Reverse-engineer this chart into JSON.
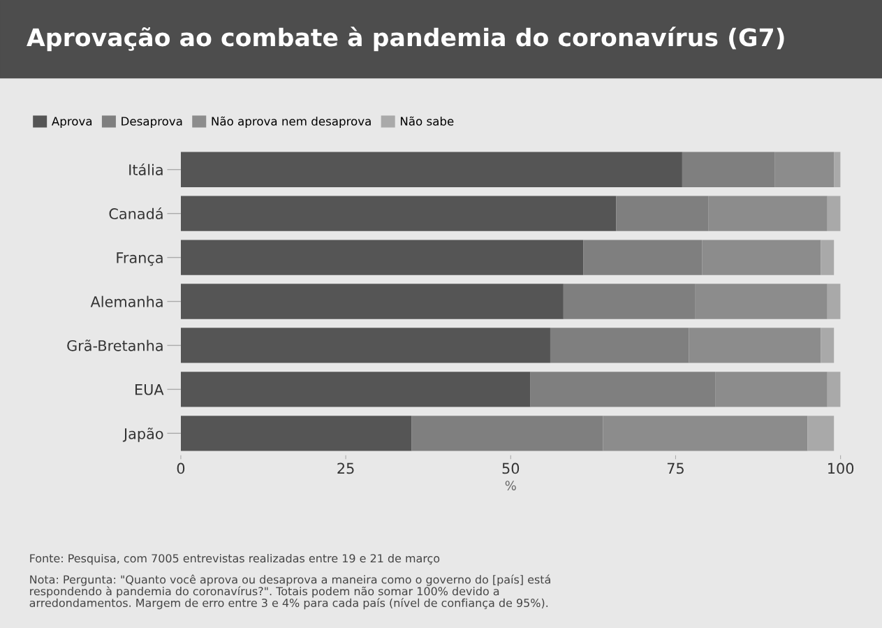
{
  "chart_data": {
    "type": "bar",
    "orientation": "horizontal",
    "stacked": true,
    "title": "Aprovação ao combate à pandemia do coronavírus (G7)",
    "categories": [
      "Itália",
      "Canadá",
      "França",
      "Alemanha",
      "Grã-Bretanha",
      "EUA",
      "Japão"
    ],
    "series": [
      {
        "name": "Aprova",
        "color": "#555555",
        "values": [
          76,
          66,
          61,
          58,
          56,
          53,
          35
        ]
      },
      {
        "name": "Desaprova",
        "color": "#7f7f7f",
        "values": [
          14,
          14,
          18,
          20,
          21,
          28,
          29
        ]
      },
      {
        "name": "Não aprova nem desaprova",
        "color": "#8c8c8c",
        "values": [
          9,
          18,
          18,
          20,
          20,
          17,
          31
        ]
      },
      {
        "name": "Não sabe",
        "color": "#a9a9a9",
        "values": [
          1,
          2,
          2,
          2,
          2,
          2,
          4
        ]
      }
    ],
    "xlabel": "%",
    "xlim": [
      0,
      100
    ],
    "xticks": [
      0,
      25,
      50,
      75,
      100
    ],
    "grid": false,
    "legend": "top left",
    "annotations": [
      "Fonte: Pesquisa, com 7005 entrevistas realizadas entre 19 e 21 de março",
      "Nota: Pergunta: \"Quanto você aprova ou desaprova a maneira como o governo do [país] está\nrespondendo à pandemia do coronavírus?\". Totais podem não somar 100% devido a\narredondamentos. Margem de erro entre 3 e 4% para cada país (nível de confiança de 95%)."
    ]
  }
}
